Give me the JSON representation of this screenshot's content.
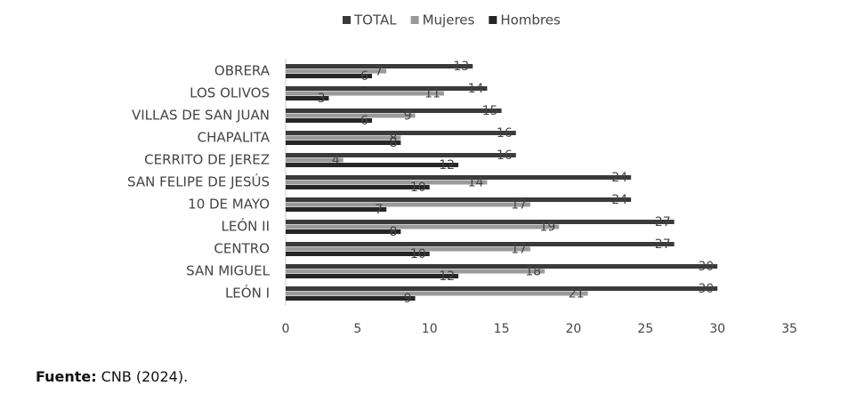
{
  "chart_data": {
    "type": "barh",
    "categories": [
      "OBRERA",
      "LOS OLIVOS",
      "VILLAS DE SAN JUAN",
      "CHAPALITA",
      "CERRITO DE JEREZ",
      "SAN FELIPE DE JESÚS",
      "10 DE MAYO",
      "LEÓN II",
      "CENTRO",
      "SAN MIGUEL",
      "LEÓN I"
    ],
    "series": [
      {
        "name": "TOTAL",
        "color": "#3a3a3a",
        "values": [
          13,
          14,
          15,
          16,
          16,
          24,
          24,
          27,
          27,
          30,
          30
        ]
      },
      {
        "name": "Mujeres",
        "color": "#9a9a9a",
        "values": [
          7,
          11,
          9,
          8,
          4,
          14,
          17,
          19,
          17,
          18,
          21
        ]
      },
      {
        "name": "Hombres",
        "color": "#262626",
        "values": [
          6,
          3,
          6,
          8,
          12,
          10,
          7,
          8,
          10,
          12,
          9
        ]
      }
    ],
    "xlim": [
      0,
      35
    ],
    "xticks": [
      0,
      5,
      10,
      15,
      20,
      25,
      30,
      35
    ],
    "legend": "top",
    "note": {
      "label": "Fuente:",
      "text": "CNB (2024)."
    }
  }
}
